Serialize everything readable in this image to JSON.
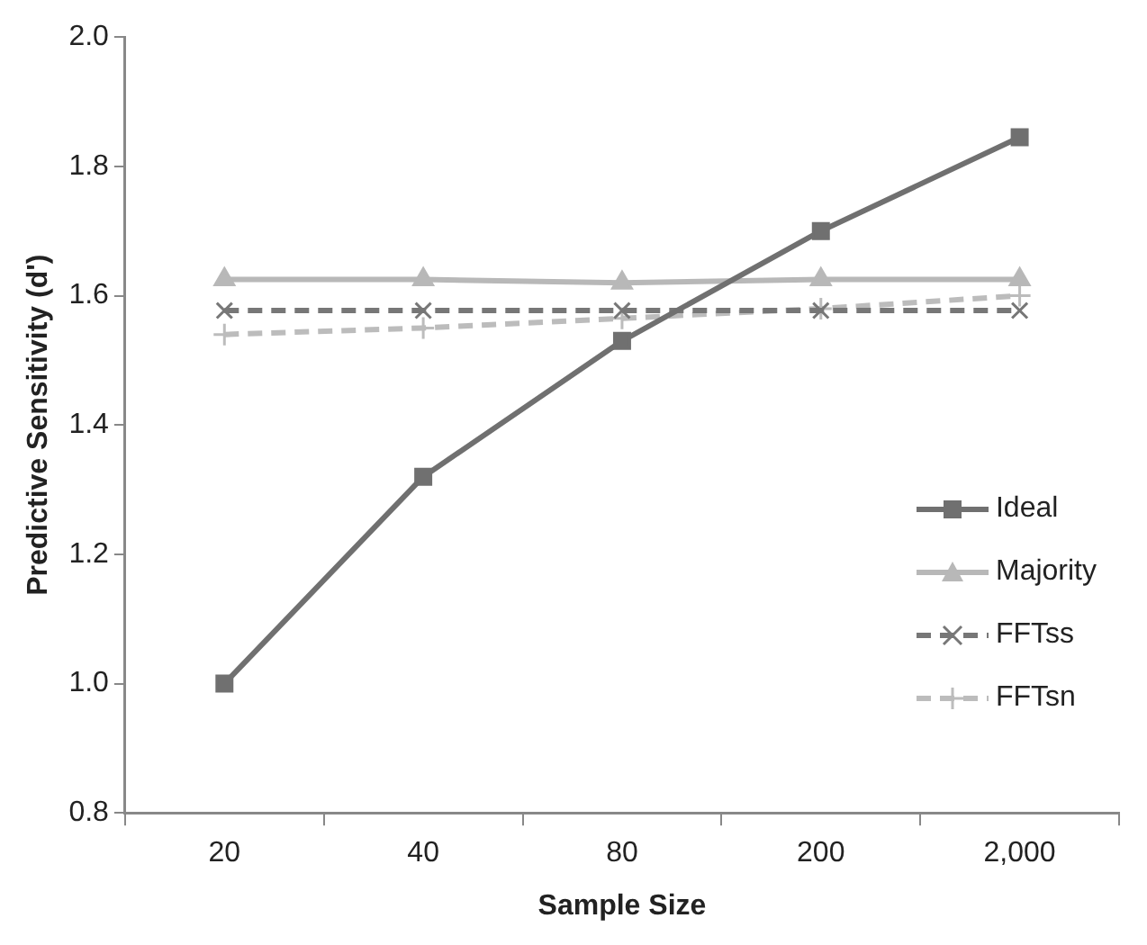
{
  "chart_data": {
    "type": "line",
    "xlabel": "Sample Size",
    "ylabel": "Predictive Sensitivity (d')",
    "categories": [
      "20",
      "40",
      "80",
      "200",
      "2,000"
    ],
    "series": [
      {
        "name": "Ideal",
        "color": "#707070",
        "marker": "square",
        "line_style": "solid",
        "values": [
          1.0,
          1.32,
          1.53,
          1.7,
          1.845
        ]
      },
      {
        "name": "Majority",
        "color": "#b8b8b8",
        "marker": "triangle",
        "line_style": "solid",
        "values": [
          1.625,
          1.625,
          1.62,
          1.625,
          1.625
        ]
      },
      {
        "name": "FFTss",
        "color": "#777777",
        "marker": "cross",
        "line_style": "dashed",
        "values": [
          1.577,
          1.577,
          1.577,
          1.577,
          1.577
        ]
      },
      {
        "name": "FFTsn",
        "color": "#bcbcbc",
        "marker": "plus",
        "line_style": "dashed",
        "values": [
          1.54,
          1.55,
          1.565,
          1.58,
          1.6
        ]
      }
    ],
    "ylim": [
      0.8,
      2.0
    ],
    "yticks": [
      {
        "value": 0.8,
        "label": "0.8"
      },
      {
        "value": 1.0,
        "label": "1.0"
      },
      {
        "value": 1.2,
        "label": "1.2"
      },
      {
        "value": 1.4,
        "label": "1.4"
      },
      {
        "value": 1.6,
        "label": "1.6"
      },
      {
        "value": 1.8,
        "label": "1.8"
      },
      {
        "value": 2.0,
        "label": "2.0"
      }
    ],
    "grid": false,
    "legend": "bottom right"
  }
}
